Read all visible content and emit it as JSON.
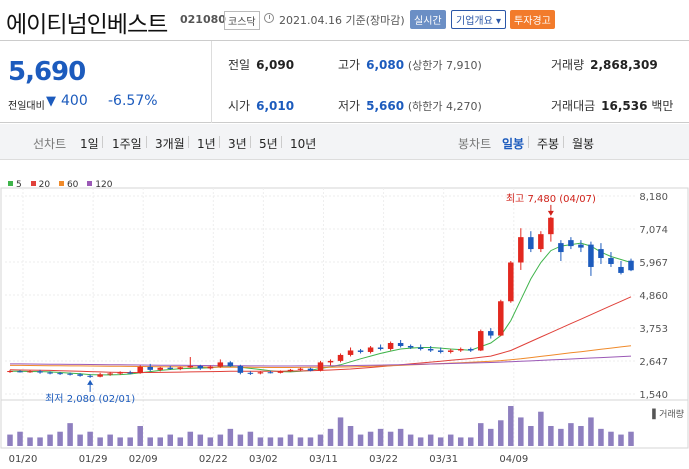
{
  "stock": {
    "name": "에이티넘인베스트",
    "code": "021080",
    "market": "코스닥",
    "date": "2021.04.16 기준(장마감)",
    "btn_realtime": "실시간",
    "btn_corp": "기업개요 ▾",
    "btn_warn": "투자경고"
  },
  "quote": {
    "current": "5,690",
    "compare_label": "전일대비",
    "direction": "▼",
    "change": "400",
    "change_pct": "-6.57%",
    "prev_label": "전일",
    "prev": "6,090",
    "open_label": "시가",
    "open": "6,010",
    "high_label": "고가",
    "high": "6,080",
    "upper_limit": "(상한가 7,910)",
    "low_label": "저가",
    "low": "5,660",
    "lower_limit": "(하한가 4,270)",
    "volume_label": "거래량",
    "volume": "2,868,309",
    "amount_label": "거래대금",
    "amount": "16,536",
    "amount_unit": "백만"
  },
  "periods": {
    "line_label": "선차트",
    "items": [
      "1일",
      "1주일",
      "3개월",
      "1년",
      "3년",
      "5년",
      "10년"
    ],
    "candle_label": "봉차트",
    "candles": [
      "일봉",
      "주봉",
      "월봉"
    ],
    "active_candle": "일봉"
  },
  "colors": {
    "up": "#e2281f",
    "down": "#1c5bbd",
    "ma5": "#3fb44b",
    "ma20": "#e0413a",
    "ma60": "#f08a2a",
    "ma120": "#9b59b6",
    "volume": "#8e7fbf"
  },
  "chart_data": {
    "type": "candlestick",
    "ma_legend": [
      {
        "name": "5",
        "color": "#3fb44b"
      },
      {
        "name": "20",
        "color": "#e0413a"
      },
      {
        "name": "60",
        "color": "#f08a2a"
      },
      {
        "name": "120",
        "color": "#9b59b6"
      }
    ],
    "y_ticks": [
      "8,180",
      "7,074",
      "5,967",
      "4,860",
      "3,753",
      "2,647",
      "1,540"
    ],
    "ylim": [
      1540,
      8180
    ],
    "x_ticks": [
      "01/20",
      "01/29",
      "02/09",
      "02/22",
      "03/02",
      "03/11",
      "03/22",
      "03/31",
      "04/09"
    ],
    "max_annotation": "최고 7,480 (04/07)",
    "min_annotation": "최저 2,080 (02/01)",
    "volume_label": "거래량",
    "candles": [
      {
        "o": 2300,
        "h": 2350,
        "l": 2250,
        "c": 2310
      },
      {
        "o": 2300,
        "h": 2340,
        "l": 2260,
        "c": 2290
      },
      {
        "o": 2290,
        "h": 2330,
        "l": 2250,
        "c": 2300
      },
      {
        "o": 2300,
        "h": 2350,
        "l": 2220,
        "c": 2260
      },
      {
        "o": 2260,
        "h": 2300,
        "l": 2200,
        "c": 2240
      },
      {
        "o": 2240,
        "h": 2280,
        "l": 2180,
        "c": 2220
      },
      {
        "o": 2220,
        "h": 2260,
        "l": 2160,
        "c": 2200
      },
      {
        "o": 2200,
        "h": 2240,
        "l": 2120,
        "c": 2150
      },
      {
        "o": 2150,
        "h": 2200,
        "l": 2080,
        "c": 2120
      },
      {
        "o": 2120,
        "h": 2250,
        "l": 2100,
        "c": 2200
      },
      {
        "o": 2200,
        "h": 2280,
        "l": 2150,
        "c": 2230
      },
      {
        "o": 2230,
        "h": 2300,
        "l": 2180,
        "c": 2260
      },
      {
        "o": 2260,
        "h": 2320,
        "l": 2200,
        "c": 2240
      },
      {
        "o": 2240,
        "h": 2500,
        "l": 2220,
        "c": 2450
      },
      {
        "o": 2450,
        "h": 2550,
        "l": 2300,
        "c": 2350
      },
      {
        "o": 2350,
        "h": 2450,
        "l": 2300,
        "c": 2420
      },
      {
        "o": 2420,
        "h": 2480,
        "l": 2350,
        "c": 2380
      },
      {
        "o": 2380,
        "h": 2460,
        "l": 2340,
        "c": 2430
      },
      {
        "o": 2430,
        "h": 2780,
        "l": 2400,
        "c": 2480
      },
      {
        "o": 2480,
        "h": 2520,
        "l": 2350,
        "c": 2400
      },
      {
        "o": 2400,
        "h": 2500,
        "l": 2360,
        "c": 2460
      },
      {
        "o": 2460,
        "h": 2700,
        "l": 2420,
        "c": 2600
      },
      {
        "o": 2600,
        "h": 2640,
        "l": 2450,
        "c": 2480
      },
      {
        "o": 2480,
        "h": 2520,
        "l": 2200,
        "c": 2250
      },
      {
        "o": 2250,
        "h": 2300,
        "l": 2180,
        "c": 2230
      },
      {
        "o": 2230,
        "h": 2300,
        "l": 2200,
        "c": 2270
      },
      {
        "o": 2270,
        "h": 2320,
        "l": 2230,
        "c": 2250
      },
      {
        "o": 2250,
        "h": 2330,
        "l": 2230,
        "c": 2310
      },
      {
        "o": 2310,
        "h": 2380,
        "l": 2280,
        "c": 2350
      },
      {
        "o": 2350,
        "h": 2420,
        "l": 2320,
        "c": 2390
      },
      {
        "o": 2390,
        "h": 2420,
        "l": 2300,
        "c": 2320
      },
      {
        "o": 2320,
        "h": 2650,
        "l": 2300,
        "c": 2600
      },
      {
        "o": 2600,
        "h": 2700,
        "l": 2500,
        "c": 2650
      },
      {
        "o": 2650,
        "h": 2900,
        "l": 2600,
        "c": 2850
      },
      {
        "o": 2850,
        "h": 3100,
        "l": 2800,
        "c": 3000
      },
      {
        "o": 3000,
        "h": 3050,
        "l": 2900,
        "c": 2950
      },
      {
        "o": 2950,
        "h": 3150,
        "l": 2900,
        "c": 3100
      },
      {
        "o": 3100,
        "h": 3200,
        "l": 3000,
        "c": 3050
      },
      {
        "o": 3050,
        "h": 3300,
        "l": 3000,
        "c": 3250
      },
      {
        "o": 3250,
        "h": 3350,
        "l": 3100,
        "c": 3150
      },
      {
        "o": 3150,
        "h": 3200,
        "l": 3050,
        "c": 3100
      },
      {
        "o": 3100,
        "h": 3200,
        "l": 3000,
        "c": 3050
      },
      {
        "o": 3050,
        "h": 3150,
        "l": 2950,
        "c": 3000
      },
      {
        "o": 3000,
        "h": 3100,
        "l": 2900,
        "c": 2950
      },
      {
        "o": 2950,
        "h": 3050,
        "l": 2900,
        "c": 3000
      },
      {
        "o": 3000,
        "h": 3100,
        "l": 2950,
        "c": 3050
      },
      {
        "o": 3050,
        "h": 3100,
        "l": 2950,
        "c": 3000
      },
      {
        "o": 3000,
        "h": 3700,
        "l": 2980,
        "c": 3650
      },
      {
        "o": 3650,
        "h": 3750,
        "l": 3400,
        "c": 3500
      },
      {
        "o": 3500,
        "h": 4700,
        "l": 3480,
        "c": 4650
      },
      {
        "o": 4650,
        "h": 6000,
        "l": 4600,
        "c": 5950
      },
      {
        "o": 5950,
        "h": 7100,
        "l": 5700,
        "c": 6800
      },
      {
        "o": 6800,
        "h": 7000,
        "l": 6300,
        "c": 6400
      },
      {
        "o": 6400,
        "h": 7000,
        "l": 6300,
        "c": 6900
      },
      {
        "o": 6900,
        "h": 7480,
        "l": 6650,
        "c": 7450
      },
      {
        "o": 6600,
        "h": 6700,
        "l": 6000,
        "c": 6300
      },
      {
        "o": 6700,
        "h": 6800,
        "l": 6400,
        "c": 6500
      },
      {
        "o": 6550,
        "h": 6700,
        "l": 6300,
        "c": 6450
      },
      {
        "o": 6550,
        "h": 6650,
        "l": 5500,
        "c": 5800
      },
      {
        "o": 6400,
        "h": 6600,
        "l": 5900,
        "c": 6100
      },
      {
        "o": 6100,
        "h": 6300,
        "l": 5800,
        "c": 5900
      },
      {
        "o": 5800,
        "h": 6000,
        "l": 5550,
        "c": 5600
      },
      {
        "o": 6010,
        "h": 6080,
        "l": 5660,
        "c": 5690
      }
    ],
    "ma_lines": [
      {
        "name": "5",
        "values": [
          2300,
          2300,
          2295,
          2290,
          2280,
          2260,
          2240,
          2220,
          2190,
          2180,
          2180,
          2190,
          2210,
          2250,
          2290,
          2330,
          2360,
          2390,
          2400,
          2410,
          2420,
          2450,
          2460,
          2440,
          2400,
          2360,
          2320,
          2290,
          2280,
          2300,
          2330,
          2400,
          2450,
          2520,
          2620,
          2720,
          2810,
          2900,
          2980,
          3050,
          3080,
          3100,
          3100,
          3080,
          3050,
          3030,
          3010,
          3130,
          3250,
          3500,
          4000,
          4700,
          5400,
          5950,
          6350,
          6500,
          6550,
          6600,
          6500,
          6300,
          6150,
          6050,
          5950
        ]
      },
      {
        "name": "20",
        "values": [
          2350,
          2345,
          2340,
          2335,
          2330,
          2320,
          2310,
          2300,
          2290,
          2280,
          2270,
          2265,
          2260,
          2260,
          2262,
          2265,
          2270,
          2275,
          2280,
          2285,
          2290,
          2295,
          2300,
          2300,
          2300,
          2300,
          2300,
          2305,
          2310,
          2315,
          2320,
          2330,
          2345,
          2360,
          2380,
          2405,
          2430,
          2460,
          2490,
          2520,
          2550,
          2580,
          2610,
          2640,
          2670,
          2700,
          2730,
          2770,
          2810,
          2900,
          3000,
          3150,
          3300,
          3450,
          3600,
          3750,
          3900,
          4050,
          4200,
          4350,
          4500,
          4650,
          4800
        ]
      },
      {
        "name": "60",
        "values": [
          2500,
          2498,
          2495,
          2492,
          2490,
          2487,
          2484,
          2481,
          2478,
          2475,
          2472,
          2469,
          2466,
          2463,
          2460,
          2457,
          2454,
          2451,
          2448,
          2445,
          2442,
          2440,
          2438,
          2436,
          2434,
          2432,
          2430,
          2430,
          2430,
          2432,
          2434,
          2436,
          2440,
          2445,
          2450,
          2460,
          2470,
          2480,
          2490,
          2500,
          2515,
          2530,
          2545,
          2560,
          2575,
          2590,
          2605,
          2620,
          2640,
          2660,
          2690,
          2720,
          2760,
          2800,
          2840,
          2880,
          2920,
          2960,
          3000,
          3040,
          3080,
          3120,
          3160
        ]
      },
      {
        "name": "120",
        "values": [
          2550,
          2548,
          2545,
          2542,
          2540,
          2537,
          2534,
          2531,
          2528,
          2525,
          2522,
          2519,
          2516,
          2513,
          2510,
          2507,
          2504,
          2501,
          2498,
          2495,
          2492,
          2490,
          2488,
          2486,
          2484,
          2482,
          2480,
          2480,
          2480,
          2481,
          2482,
          2484,
          2486,
          2490,
          2494,
          2498,
          2504,
          2510,
          2516,
          2522,
          2530,
          2538,
          2546,
          2554,
          2562,
          2570,
          2578,
          2588,
          2598,
          2610,
          2622,
          2636,
          2650,
          2666,
          2682,
          2698,
          2714,
          2730,
          2746,
          2762,
          2778,
          2794,
          2810
        ]
      }
    ],
    "volume": [
      4,
      5,
      3,
      3,
      4,
      5,
      8,
      4,
      5,
      3,
      4,
      3,
      3,
      7,
      3,
      3,
      4,
      3,
      5,
      4,
      3,
      4,
      6,
      4,
      5,
      3,
      3,
      3,
      4,
      3,
      3,
      4,
      6,
      10,
      7,
      4,
      5,
      6,
      5,
      6,
      4,
      3,
      4,
      3,
      4,
      3,
      3,
      8,
      6,
      9,
      14,
      10,
      7,
      12,
      7,
      6,
      8,
      7,
      10,
      6,
      5,
      4,
      5
    ]
  }
}
